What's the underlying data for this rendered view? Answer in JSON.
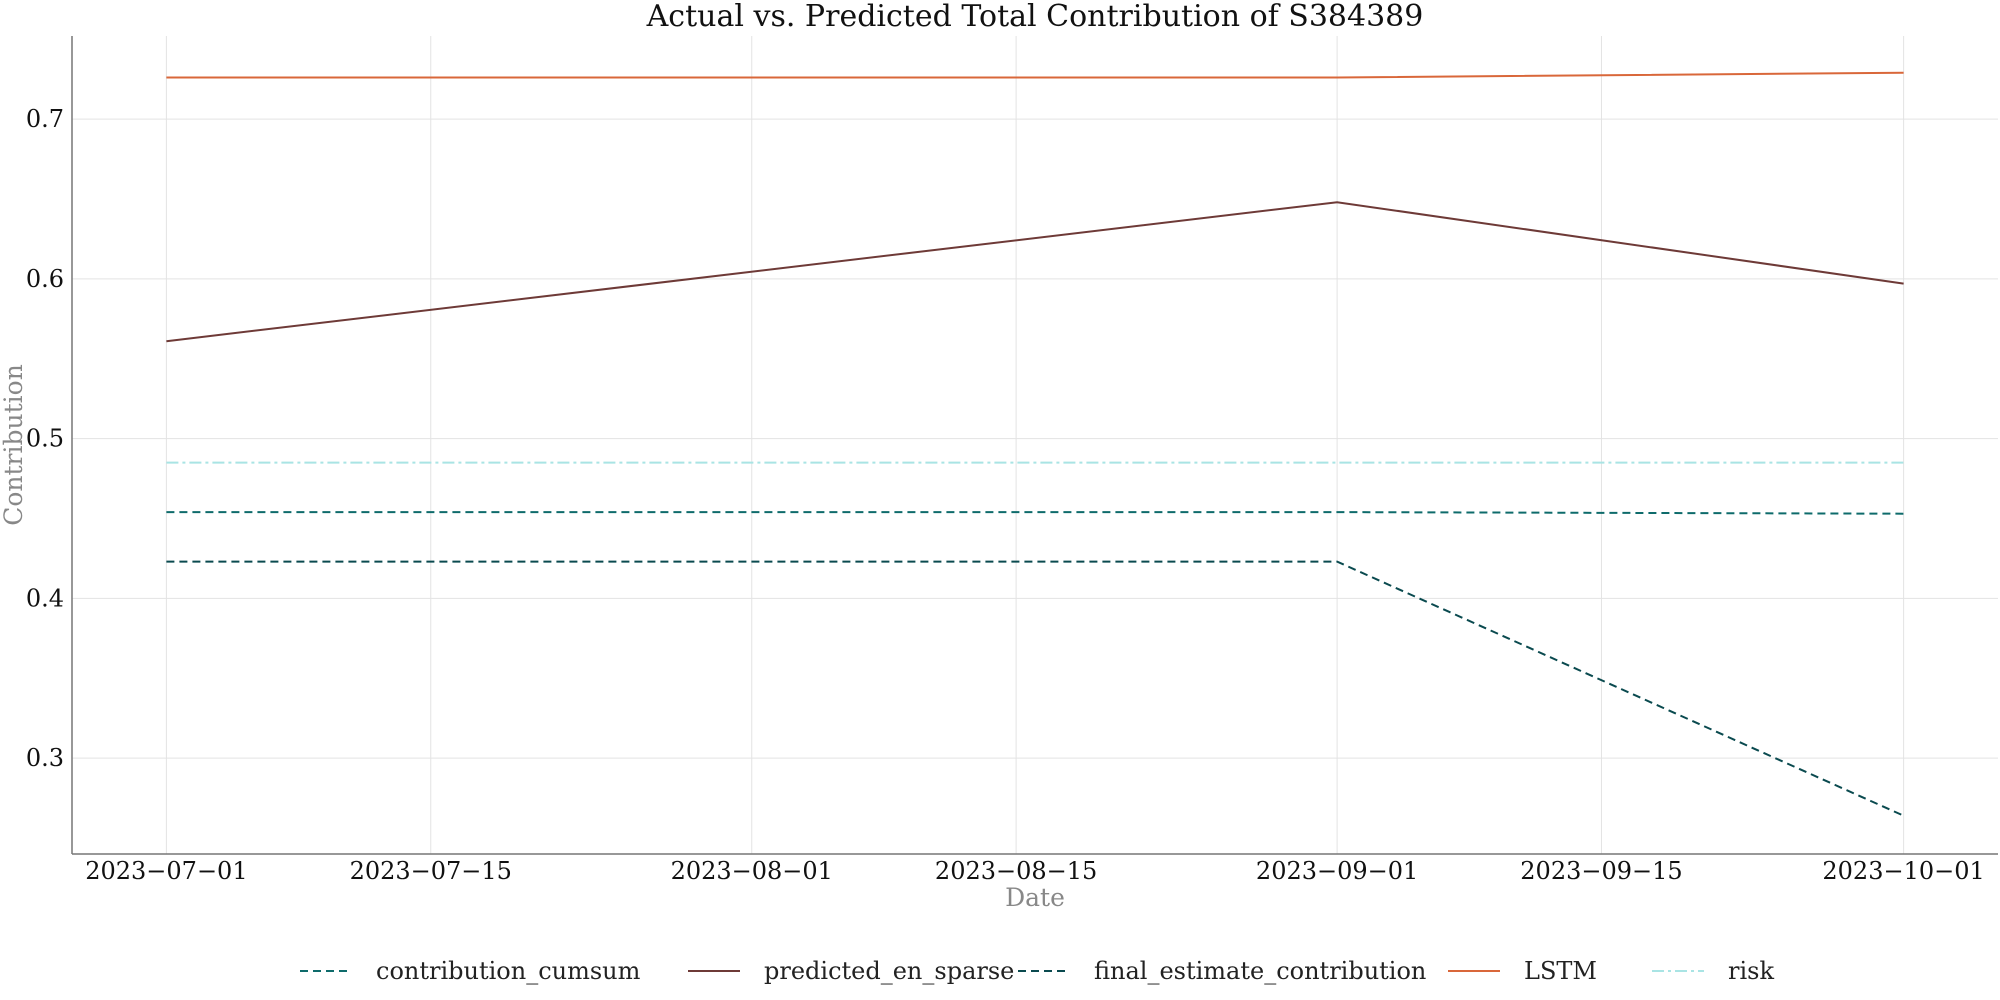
{
  "chart_data": {
    "type": "line",
    "title": "Actual vs. Predicted Total Contribution of S384389",
    "xlabel": "Date",
    "ylabel": "Contribution",
    "x": [
      "2023-07-01",
      "2023-09-01",
      "2023-10-01"
    ],
    "x_ticks": [
      "2023-07-01",
      "2023-07-15",
      "2023-08-01",
      "2023-08-15",
      "2023-09-01",
      "2023-09-15",
      "2023-10-01"
    ],
    "y_ticks": [
      0.3,
      0.4,
      0.5,
      0.6,
      0.7
    ],
    "y_tick_labels": [
      "0.3",
      "0.4",
      "0.5",
      "0.6",
      "0.7"
    ],
    "xlim": [
      "2023-06-26",
      "2023-10-06"
    ],
    "ylim": [
      0.24,
      0.752
    ],
    "grid": true,
    "legend_position": "bottom",
    "series": [
      {
        "name": "contribution_cumsum",
        "values": [
          0.454,
          0.454,
          0.453
        ],
        "color": "#0e6b6b",
        "style": "dashed"
      },
      {
        "name": "predicted_en_sparse",
        "values": [
          0.561,
          0.648,
          0.597
        ],
        "color": "#6e3a37",
        "style": "solid"
      },
      {
        "name": "final_estimate_contribution",
        "values": [
          0.423,
          0.423,
          0.264
        ],
        "color": "#0a4a4f",
        "style": "dashed"
      },
      {
        "name": "LSTM",
        "values": [
          0.726,
          0.726,
          0.729
        ],
        "color": "#d9673a",
        "style": "solid"
      },
      {
        "name": "risk",
        "values": [
          0.485,
          0.485,
          0.485
        ],
        "color": "#a9e4e4",
        "style": "dashdot"
      }
    ]
  }
}
